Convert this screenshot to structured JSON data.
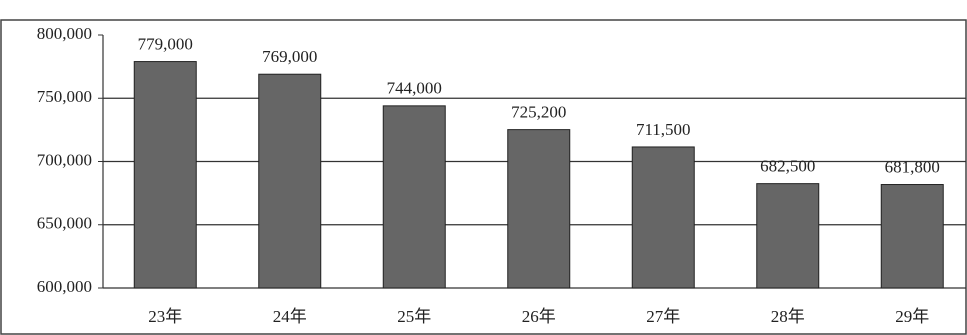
{
  "chart_data": {
    "type": "bar",
    "categories": [
      "23年",
      "24年",
      "25年",
      "26年",
      "27年",
      "28年",
      "29年"
    ],
    "values": [
      779000,
      769000,
      744000,
      725200,
      711500,
      682500,
      681800
    ],
    "value_labels": [
      "779,000",
      "769,000",
      "744,000",
      "725,200",
      "711,500",
      "682,500",
      "681,800"
    ],
    "color": "#666666",
    "ylim": [
      600000,
      800000
    ],
    "yticks": [
      {
        "value": 600000,
        "label": "600,000"
      },
      {
        "value": 650000,
        "label": "650,000"
      },
      {
        "value": 700000,
        "label": "700,000"
      },
      {
        "value": 750000,
        "label": "750,000"
      },
      {
        "value": 800000,
        "label": "800,000"
      }
    ],
    "grid": true
  }
}
